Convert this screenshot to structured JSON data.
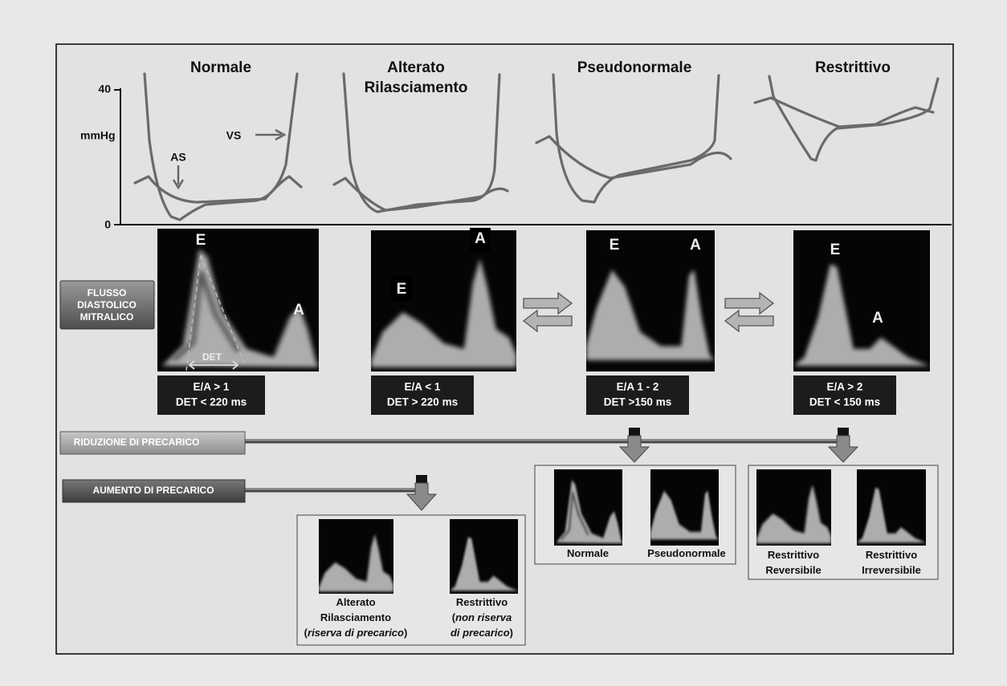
{
  "pressure_axis": {
    "unit": "mmHg",
    "ticks": [
      40,
      0
    ]
  },
  "curve_labels": {
    "atrium": "AS",
    "ventricle": "VS"
  },
  "det_label": "DET",
  "flow_label": [
    "FLUSSO",
    "DIASTOLICO",
    "MITRALICO"
  ],
  "columns": [
    {
      "title": [
        "Normale"
      ],
      "doppler": {
        "e": "E",
        "a": "A"
      },
      "indices": [
        "E/A > 1",
        "DET < 220 ms"
      ]
    },
    {
      "title": [
        "Alterato",
        "Rilasciamento"
      ],
      "doppler": {
        "e": "E",
        "a": "A"
      },
      "indices": [
        "E/A < 1",
        "DET > 220 ms"
      ]
    },
    {
      "title": [
        "Pseudonormale"
      ],
      "doppler": {
        "e": "E",
        "a": "A"
      },
      "indices": [
        "E/A 1 - 2",
        "DET >150 ms"
      ]
    },
    {
      "title": [
        "Restrittivo"
      ],
      "doppler": {
        "e": "E",
        "a": "A"
      },
      "indices": [
        "E/A > 2",
        "DET < 150 ms"
      ]
    }
  ],
  "preload_reduction": {
    "label": "RIDUZIONE DI PRECARICO",
    "groups": [
      {
        "captions": [
          [
            [
              {
                "text": "Normale"
              }
            ]
          ],
          [
            [
              {
                "text": "Pseudonormale"
              }
            ]
          ]
        ]
      },
      {
        "captions": [
          [
            [
              {
                "text": "Restrittivo"
              }
            ],
            [
              {
                "text": "Reversibile"
              }
            ]
          ],
          [
            [
              {
                "text": "Restrittivo"
              }
            ],
            [
              {
                "text": "Irreversibile"
              }
            ]
          ]
        ]
      }
    ]
  },
  "preload_increase": {
    "label": "AUMENTO DI PRECARICO",
    "groups": [
      {
        "captions": [
          [
            [
              {
                "text": "Alterato"
              }
            ],
            [
              {
                "text": "Rilasciamento"
              }
            ],
            [
              {
                "text": "("
              },
              {
                "text": "riserva di precarico",
                "italic": true
              },
              {
                "text": ")"
              }
            ]
          ],
          [
            [
              {
                "text": "Restrittivo"
              }
            ],
            [
              {
                "text": "("
              },
              {
                "text": "non riserva",
                "italic": true
              }
            ],
            [
              {
                "text": "di precarico",
                "italic": true
              },
              {
                "text": ")"
              }
            ]
          ]
        ]
      }
    ]
  }
}
